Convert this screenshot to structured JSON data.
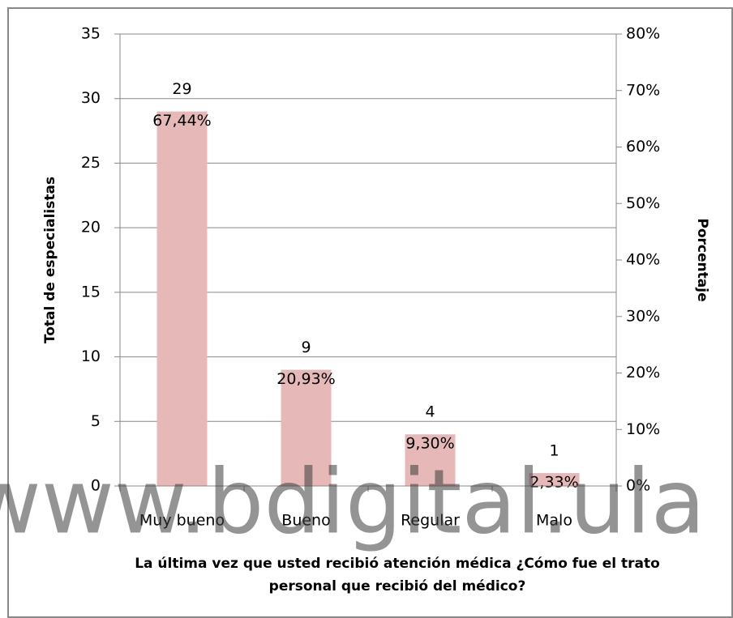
{
  "chart_data": {
    "type": "bar",
    "categories": [
      "Muy bueno",
      "Bueno",
      "Regular",
      "Malo"
    ],
    "values": [
      29,
      9,
      4,
      1
    ],
    "percent_labels": [
      "67,44%",
      "20,93%",
      "9,30%",
      "2,33%"
    ],
    "color": "#e6b9b8",
    "ylabel": "Total de especialistas",
    "y2label": "Porcentaje",
    "xlabel": [
      "La última vez que usted recibió atención médica ¿Cómo fue el trato",
      "personal que recibió del médico?"
    ],
    "ylim": [
      0,
      35
    ],
    "yticks": [
      0,
      5,
      10,
      15,
      20,
      25,
      30,
      35
    ],
    "y2lim": [
      0,
      80
    ],
    "y2ticks": [
      {
        "value": 0,
        "label": "0%"
      },
      {
        "value": 10,
        "label": "10%"
      },
      {
        "value": 20,
        "label": "20%"
      },
      {
        "value": 30,
        "label": "30%"
      },
      {
        "value": 40,
        "label": "40%"
      },
      {
        "value": 50,
        "label": "50%"
      },
      {
        "value": 60,
        "label": "60%"
      },
      {
        "value": 70,
        "label": "70%"
      },
      {
        "value": 80,
        "label": "80%"
      }
    ],
    "grid": true,
    "watermark": "www.bdigital.ula"
  }
}
